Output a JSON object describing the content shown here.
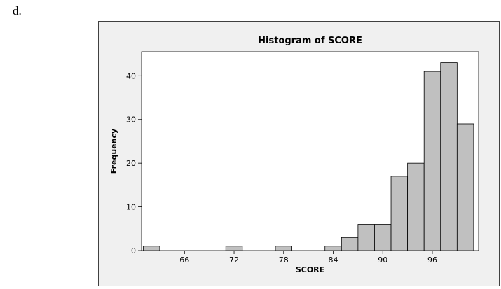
{
  "page": {
    "label": "d."
  },
  "chart_data": {
    "type": "bar",
    "title": "Histogram of SCORE",
    "xlabel": "SCORE",
    "ylabel": "Frequency",
    "bin_width": 2,
    "bins": [
      {
        "start": 61,
        "end": 63,
        "count": 1
      },
      {
        "start": 63,
        "end": 65,
        "count": 0
      },
      {
        "start": 65,
        "end": 67,
        "count": 0
      },
      {
        "start": 67,
        "end": 69,
        "count": 0
      },
      {
        "start": 69,
        "end": 71,
        "count": 0
      },
      {
        "start": 71,
        "end": 73,
        "count": 1
      },
      {
        "start": 73,
        "end": 75,
        "count": 0
      },
      {
        "start": 75,
        "end": 77,
        "count": 0
      },
      {
        "start": 77,
        "end": 79,
        "count": 1
      },
      {
        "start": 79,
        "end": 81,
        "count": 0
      },
      {
        "start": 81,
        "end": 83,
        "count": 0
      },
      {
        "start": 83,
        "end": 85,
        "count": 1
      },
      {
        "start": 85,
        "end": 87,
        "count": 3
      },
      {
        "start": 87,
        "end": 89,
        "count": 6
      },
      {
        "start": 89,
        "end": 91,
        "count": 6
      },
      {
        "start": 91,
        "end": 93,
        "count": 17
      },
      {
        "start": 93,
        "end": 95,
        "count": 20
      },
      {
        "start": 95,
        "end": 97,
        "count": 41
      },
      {
        "start": 97,
        "end": 99,
        "count": 43
      },
      {
        "start": 99,
        "end": 101,
        "count": 29
      }
    ],
    "xlim": [
      60.8,
      101.6
    ],
    "ylim": [
      0,
      45.5
    ],
    "x_ticks": [
      66,
      72,
      78,
      84,
      90,
      96
    ],
    "y_ticks": [
      0,
      10,
      20,
      30,
      40
    ],
    "grid": false,
    "bar_color": "#c0c0c0",
    "edge_color": "#000000",
    "figure_background": "#f0f0f0",
    "plot_background": "#ffffff"
  }
}
